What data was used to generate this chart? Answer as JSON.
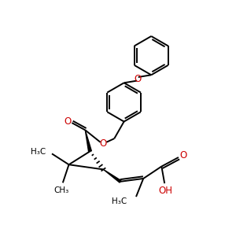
{
  "bg_color": "#ffffff",
  "bond_color": "#000000",
  "o_color": "#cc0000",
  "text_color": "#000000",
  "lw": 1.4,
  "fig_size": [
    3.0,
    3.0
  ],
  "dpi": 100,
  "xlim": [
    0,
    300
  ],
  "ylim": [
    0,
    300
  ]
}
